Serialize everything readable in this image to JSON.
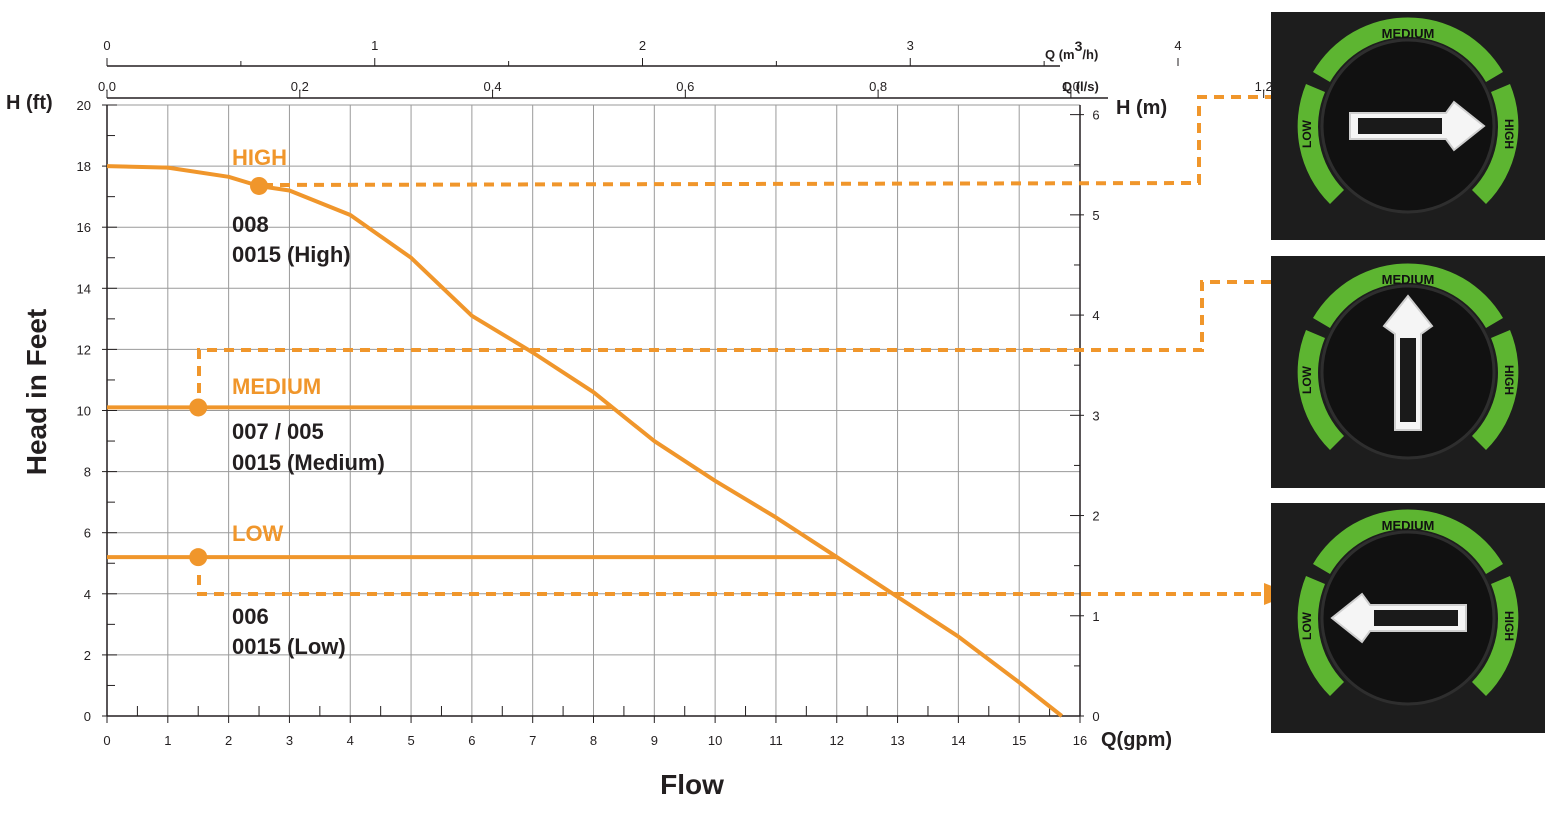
{
  "chart_data": {
    "type": "line",
    "xlabel": "Flow",
    "ylabel": "Head in Feet",
    "x_unit_label": "Q(gpm)",
    "y_left_unit_label": "H (ft)",
    "y_right_unit_label": "H (m)",
    "top_axis_1_label": "Q (m³/h)",
    "top_axis_1_label_base": "Q (m",
    "top_axis_1_label_sup": "3",
    "top_axis_1_label_end": "/h)",
    "top_axis_2_label": "Q (l/s)",
    "xlim": [
      0,
      16
    ],
    "ylim": [
      0,
      20
    ],
    "grid": true,
    "x_ticks": [
      "0",
      "1",
      "2",
      "3",
      "4",
      "5",
      "6",
      "7",
      "8",
      "9",
      "10",
      "11",
      "12",
      "13",
      "14",
      "15",
      "16"
    ],
    "y_ticks": [
      "0",
      "2",
      "4",
      "6",
      "8",
      "10",
      "12",
      "14",
      "16",
      "18",
      "20"
    ],
    "y_right_ticks": [
      "0",
      "1",
      "2",
      "3",
      "4",
      "5",
      "6"
    ],
    "top_m3h_ticks": [
      "0",
      "1",
      "2",
      "3",
      "4"
    ],
    "top_ls_ticks": [
      "0.0",
      "0.2",
      "0.4",
      "0.6",
      "0.8",
      "1.0",
      "1.2"
    ],
    "series": [
      {
        "name": "HIGH",
        "models": [
          "008",
          "0015 (High)"
        ],
        "x": [
          0,
          1,
          2,
          2.5,
          3,
          4,
          5,
          6,
          7,
          8,
          9,
          10,
          11,
          12,
          13,
          14,
          15,
          15.7
        ],
        "y": [
          18,
          17.95,
          17.65,
          17.35,
          17.2,
          16.4,
          15.0,
          13.1,
          11.9,
          10.6,
          9.0,
          7.7,
          6.5,
          5.2,
          3.9,
          2.6,
          1.1,
          0
        ]
      },
      {
        "name": "MEDIUM",
        "models": [
          "007 / 005",
          "0015 (Medium)"
        ],
        "x": [
          0,
          1.5,
          8.3
        ],
        "y": [
          10.1,
          10.1,
          10.1
        ]
      },
      {
        "name": "LOW",
        "models": [
          "006",
          "0015 (Low)"
        ],
        "x": [
          0,
          1.5,
          12
        ],
        "y": [
          5.2,
          5.2,
          5.2
        ]
      }
    ],
    "operating_points": [
      {
        "series": "HIGH",
        "x": 2.5,
        "y": 17.35
      },
      {
        "series": "MEDIUM",
        "x": 1.5,
        "y": 10.1
      },
      {
        "series": "LOW",
        "x": 1.5,
        "y": 5.2
      }
    ]
  },
  "dials": [
    {
      "setting": "HIGH",
      "labels": {
        "top": "MEDIUM",
        "left": "LOW",
        "right": "HIGH"
      }
    },
    {
      "setting": "MEDIUM",
      "labels": {
        "top": "MEDIUM",
        "left": "LOW",
        "right": "HIGH"
      }
    },
    {
      "setting": "LOW",
      "labels": {
        "top": "MEDIUM",
        "left": "LOW",
        "right": "HIGH"
      }
    }
  ],
  "colors": {
    "curve": "#f0962b",
    "grid": "#9a9a9a",
    "dial_bg": "#1d1d1d",
    "dial_ring": "#5db531",
    "text": "#231f20"
  }
}
